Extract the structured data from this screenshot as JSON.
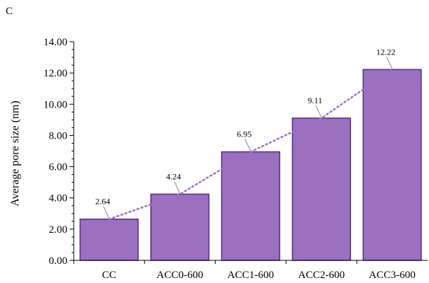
{
  "panel_label": "C",
  "colors": {
    "bar_fill": "#9b70bf",
    "bar_stroke": "#5a2a8a",
    "trend": "#a070c8",
    "leader": "#888888"
  },
  "chart_data": {
    "type": "bar",
    "ylabel": "Average pore size (nm)",
    "xlabel": "",
    "ylim": [
      0,
      14
    ],
    "yticks": [
      "0.00",
      "2.00",
      "4.00",
      "6.00",
      "8.00",
      "10.00",
      "12.00",
      "14.00"
    ],
    "categories": [
      "CC",
      "ACC0-600",
      "ACC1-600",
      "ACC2-600",
      "ACC3-600"
    ],
    "values": [
      2.64,
      4.24,
      6.95,
      9.11,
      12.22
    ],
    "data_labels": [
      "2.64",
      "4.24",
      "6.95",
      "9.11",
      "12.22"
    ],
    "trendline": "dotted",
    "grid": false
  }
}
